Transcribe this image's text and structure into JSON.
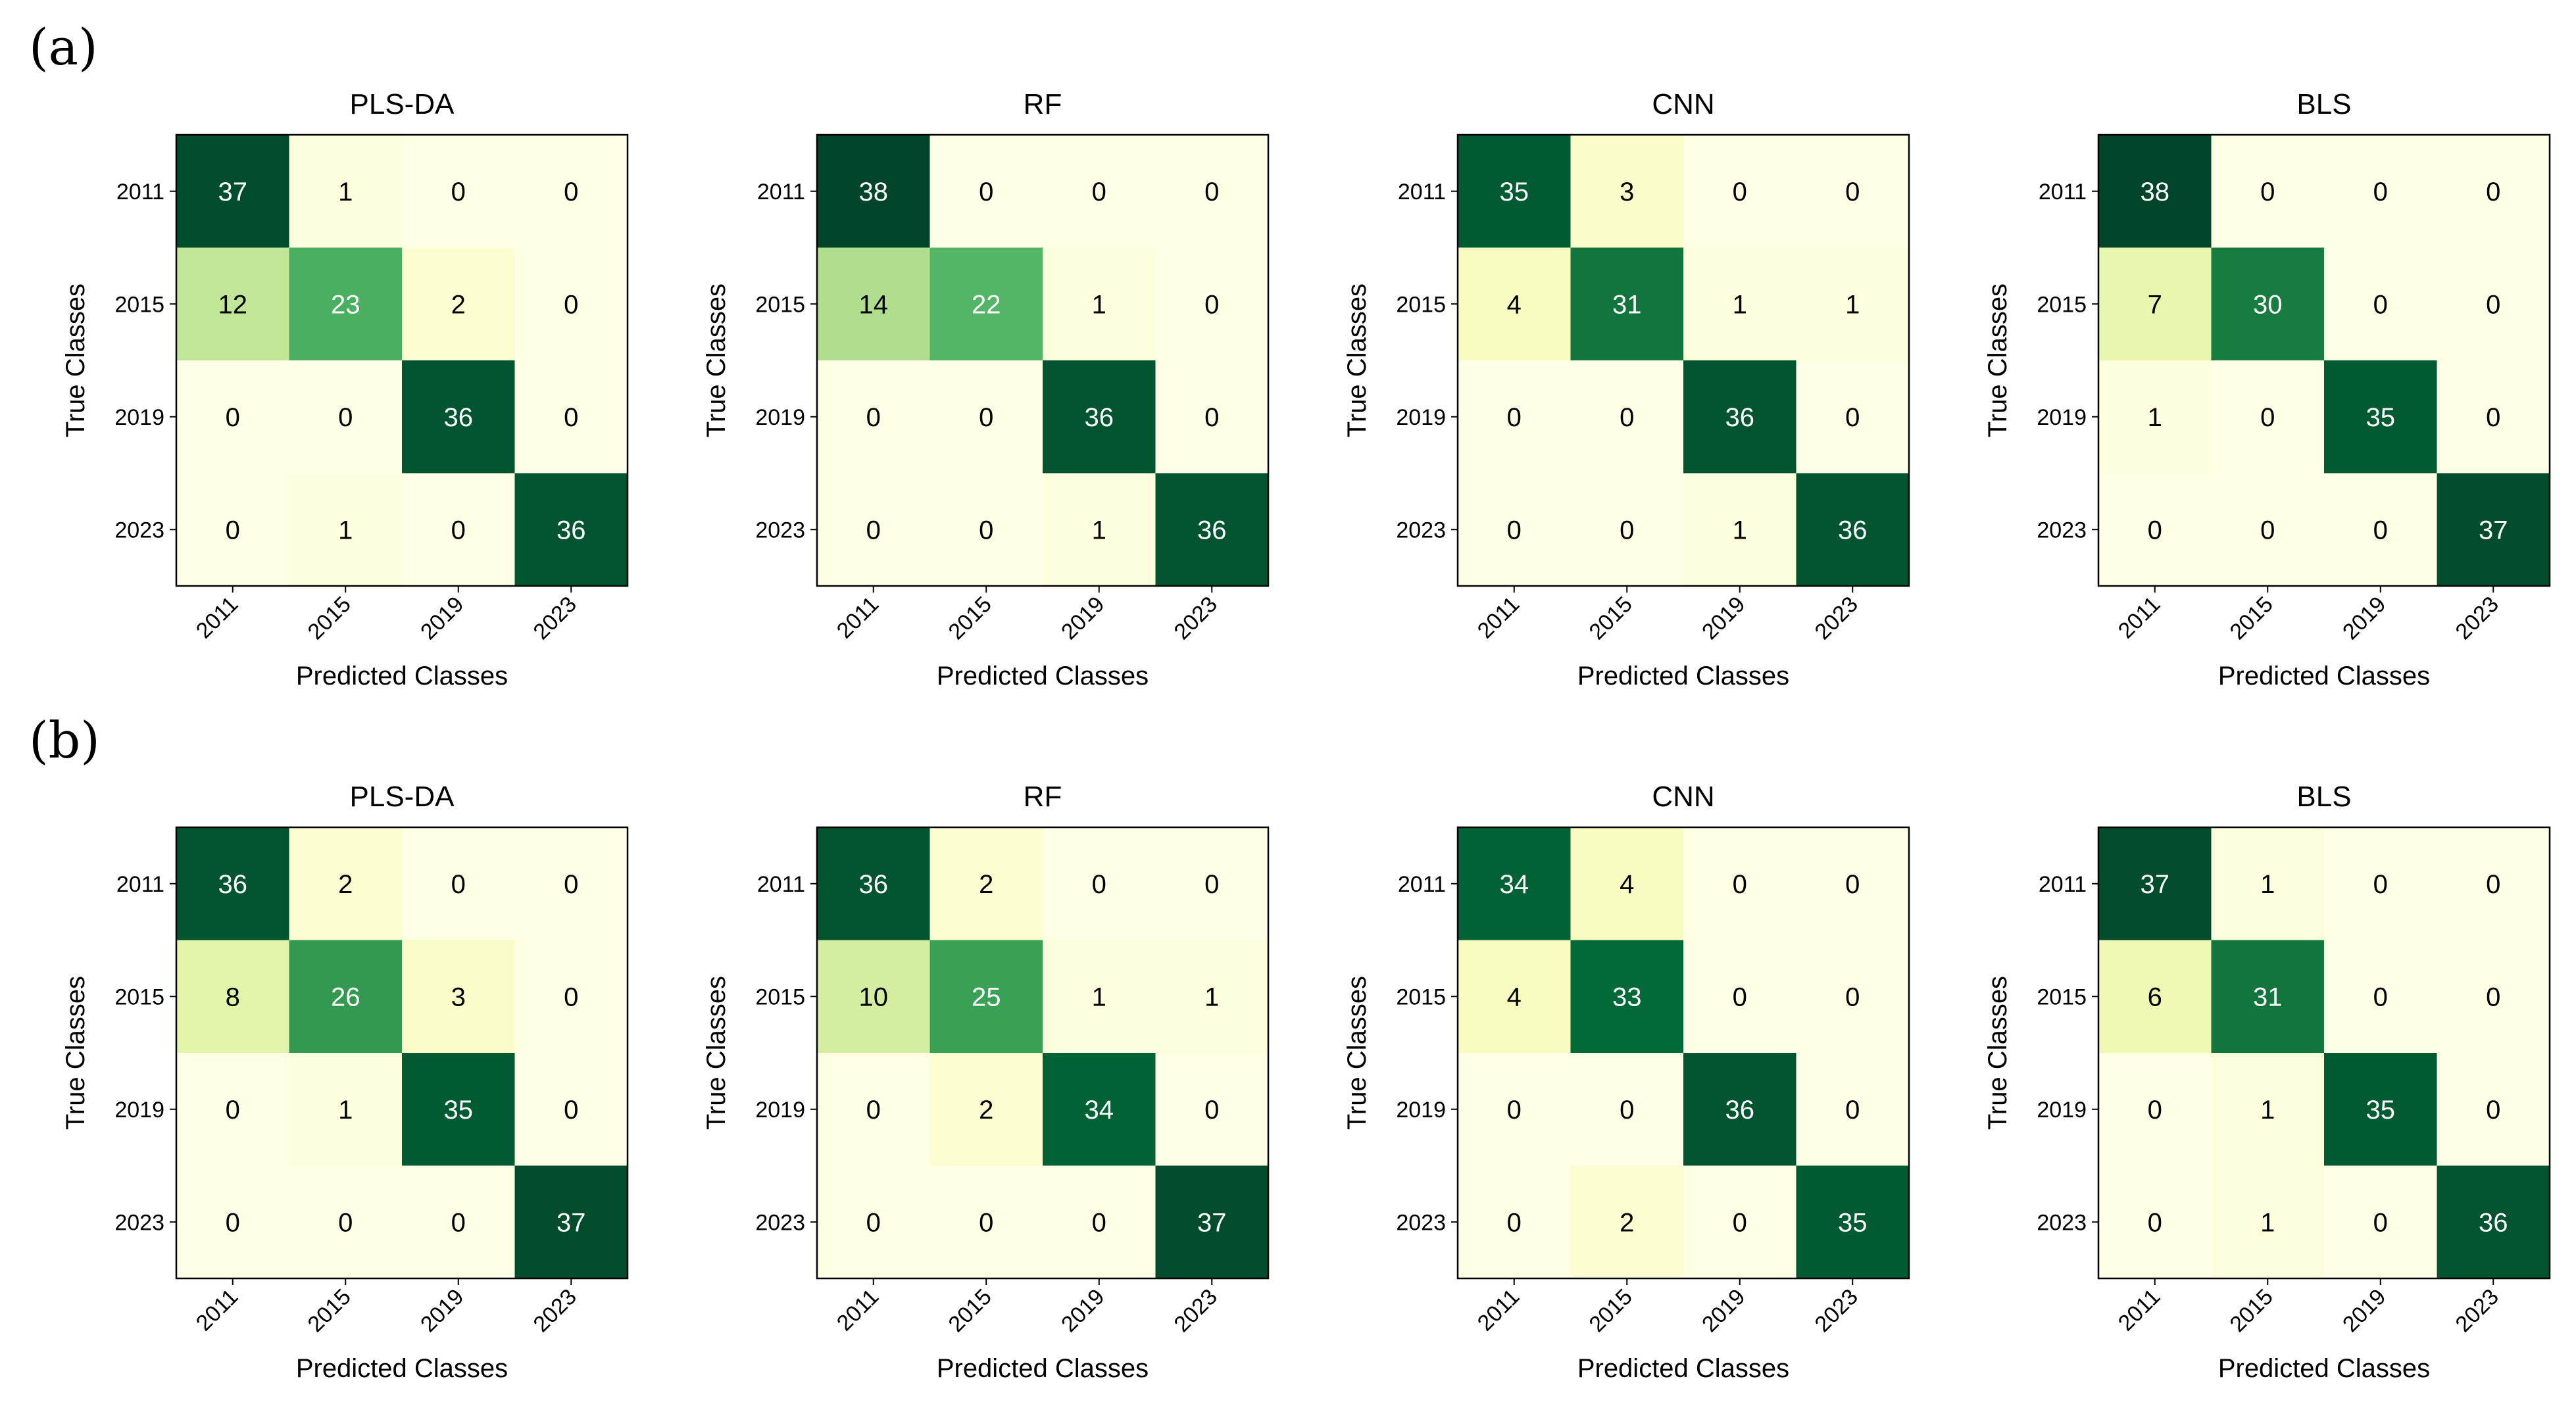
{
  "panels": [
    {
      "label": "(a)"
    },
    {
      "label": "(b)"
    }
  ],
  "chart_data": [
    {
      "type": "heatmap",
      "panel": "(a)",
      "title": "PLS-DA",
      "xlabel": "Predicted Classes",
      "ylabel": "True Classes",
      "x_categories": [
        "2011",
        "2015",
        "2019",
        "2023"
      ],
      "y_categories": [
        "2011",
        "2015",
        "2019",
        "2023"
      ],
      "values": [
        [
          37,
          1,
          0,
          0
        ],
        [
          12,
          23,
          2,
          0
        ],
        [
          0,
          0,
          36,
          0
        ],
        [
          0,
          1,
          0,
          36
        ]
      ]
    },
    {
      "type": "heatmap",
      "panel": "(a)",
      "title": "RF",
      "xlabel": "Predicted Classes",
      "ylabel": "True Classes",
      "x_categories": [
        "2011",
        "2015",
        "2019",
        "2023"
      ],
      "y_categories": [
        "2011",
        "2015",
        "2019",
        "2023"
      ],
      "values": [
        [
          38,
          0,
          0,
          0
        ],
        [
          14,
          22,
          1,
          0
        ],
        [
          0,
          0,
          36,
          0
        ],
        [
          0,
          0,
          1,
          36
        ]
      ]
    },
    {
      "type": "heatmap",
      "panel": "(a)",
      "title": "CNN",
      "xlabel": "Predicted Classes",
      "ylabel": "True Classes",
      "x_categories": [
        "2011",
        "2015",
        "2019",
        "2023"
      ],
      "y_categories": [
        "2011",
        "2015",
        "2019",
        "2023"
      ],
      "values": [
        [
          35,
          3,
          0,
          0
        ],
        [
          4,
          31,
          1,
          1
        ],
        [
          0,
          0,
          36,
          0
        ],
        [
          0,
          0,
          1,
          36
        ]
      ]
    },
    {
      "type": "heatmap",
      "panel": "(a)",
      "title": "BLS",
      "xlabel": "Predicted Classes",
      "ylabel": "True Classes",
      "x_categories": [
        "2011",
        "2015",
        "2019",
        "2023"
      ],
      "y_categories": [
        "2011",
        "2015",
        "2019",
        "2023"
      ],
      "values": [
        [
          38,
          0,
          0,
          0
        ],
        [
          7,
          30,
          0,
          0
        ],
        [
          1,
          0,
          35,
          0
        ],
        [
          0,
          0,
          0,
          37
        ]
      ]
    },
    {
      "type": "heatmap",
      "panel": "(b)",
      "title": "PLS-DA",
      "xlabel": "Predicted Classes",
      "ylabel": "True Classes",
      "x_categories": [
        "2011",
        "2015",
        "2019",
        "2023"
      ],
      "y_categories": [
        "2011",
        "2015",
        "2019",
        "2023"
      ],
      "values": [
        [
          36,
          2,
          0,
          0
        ],
        [
          8,
          26,
          3,
          0
        ],
        [
          0,
          1,
          35,
          0
        ],
        [
          0,
          0,
          0,
          37
        ]
      ]
    },
    {
      "type": "heatmap",
      "panel": "(b)",
      "title": "RF",
      "xlabel": "Predicted Classes",
      "ylabel": "True Classes",
      "x_categories": [
        "2011",
        "2015",
        "2019",
        "2023"
      ],
      "y_categories": [
        "2011",
        "2015",
        "2019",
        "2023"
      ],
      "values": [
        [
          36,
          2,
          0,
          0
        ],
        [
          10,
          25,
          1,
          1
        ],
        [
          0,
          2,
          34,
          0
        ],
        [
          0,
          0,
          0,
          37
        ]
      ]
    },
    {
      "type": "heatmap",
      "panel": "(b)",
      "title": "CNN",
      "xlabel": "Predicted Classes",
      "ylabel": "True Classes",
      "x_categories": [
        "2011",
        "2015",
        "2019",
        "2023"
      ],
      "y_categories": [
        "2011",
        "2015",
        "2019",
        "2023"
      ],
      "values": [
        [
          34,
          4,
          0,
          0
        ],
        [
          4,
          33,
          0,
          0
        ],
        [
          0,
          0,
          36,
          0
        ],
        [
          0,
          2,
          0,
          35
        ]
      ]
    },
    {
      "type": "heatmap",
      "panel": "(b)",
      "title": "BLS",
      "xlabel": "Predicted Classes",
      "ylabel": "True Classes",
      "x_categories": [
        "2011",
        "2015",
        "2019",
        "2023"
      ],
      "y_categories": [
        "2011",
        "2015",
        "2019",
        "2023"
      ],
      "values": [
        [
          37,
          1,
          0,
          0
        ],
        [
          6,
          31,
          0,
          0
        ],
        [
          0,
          1,
          35,
          0
        ],
        [
          0,
          1,
          0,
          36
        ]
      ]
    }
  ],
  "colormap": {
    "name": "Greens-like",
    "vmax": 38,
    "stops": [
      "#ffffe5",
      "#f7fcb9",
      "#d9f0a3",
      "#addd8e",
      "#78c679",
      "#41ab5d",
      "#238443",
      "#006837",
      "#004529"
    ]
  }
}
